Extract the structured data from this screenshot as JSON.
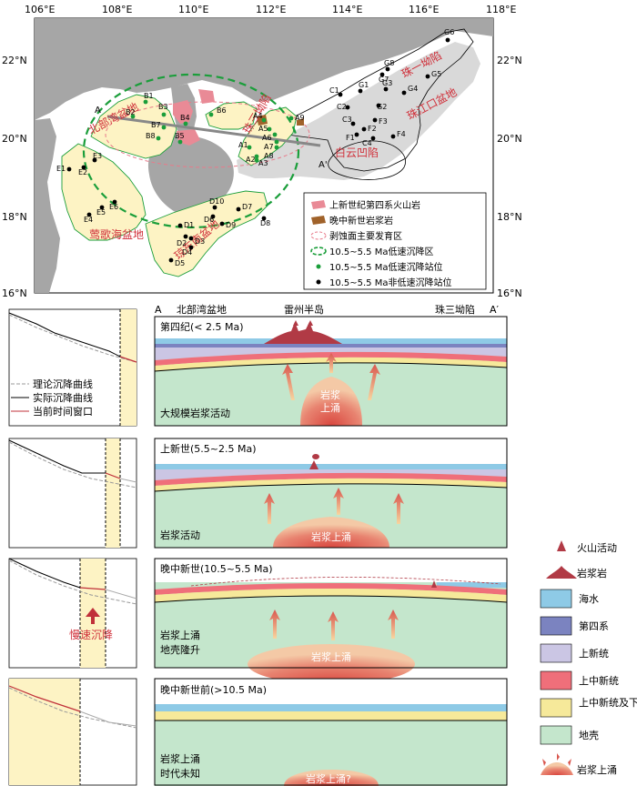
{
  "map": {
    "lon_labels": [
      "106°E",
      "108°E",
      "110°E",
      "112°E",
      "114°E",
      "116°E",
      "118°E"
    ],
    "lat_labels": [
      "22°N",
      "20°N",
      "18°N",
      "16°N"
    ],
    "basins": {
      "beibu": "北部湾盆地",
      "yinggehai": "莺歌海盆地",
      "qiongdongnan": "琼东南盆地",
      "zhusan": "珠三坳陷",
      "zhuyi": "珠一坳陷",
      "pearl_mouth": "珠江口盆地",
      "baiyun": "白云凹陷"
    },
    "profile_start": "A",
    "profile_end": "A'",
    "legend": [
      "上新世纪第四系火山岩",
      "晚中新世岩浆岩",
      "剥蚀面主要发育区",
      "10.5~5.5 Ma低速沉降区",
      "10.5~5.5 Ma低速沉降站位",
      "10.5~5.5 Ma非低速沉降站位"
    ],
    "green_stations": [
      "B1",
      "B2",
      "B3",
      "B4",
      "B5",
      "B6",
      "B7",
      "B8",
      "A1",
      "A2",
      "A3",
      "A4",
      "A5",
      "A6",
      "A7",
      "A8",
      "A9"
    ],
    "black_stations": [
      "C1",
      "C2",
      "C3",
      "C4",
      "F1",
      "F2",
      "F3",
      "F4",
      "G1",
      "G2",
      "G3",
      "G4",
      "G5",
      "G6",
      "G7",
      "G8",
      "E1",
      "E2",
      "E3",
      "E4",
      "E5",
      "E6",
      "D1",
      "D2",
      "D3",
      "D4",
      "D5",
      "D6",
      "D7",
      "D8",
      "D9",
      "D10"
    ]
  },
  "section": {
    "left_label": "A",
    "right_label": "A′",
    "top_labels": [
      "北部湾盆地",
      "雷州半岛",
      "珠三坳陷"
    ],
    "panels": [
      {
        "title": "第四纪(< 2.5 Ma)",
        "desc": [
          "大规模岩浆活动"
        ],
        "magma": [
          "岩浆",
          "上涌"
        ]
      },
      {
        "title": "上新世(5.5~2.5 Ma)",
        "desc": [
          "岩浆活动"
        ],
        "magma": [
          "岩浆上涌"
        ]
      },
      {
        "title": "晚中新世(10.5~5.5 Ma)",
        "desc": [
          "岩浆上涌",
          "地壳隆升"
        ],
        "magma": [
          "岩浆上涌"
        ]
      },
      {
        "title": "晚中新世前(>10.5 Ma)",
        "desc": [
          "岩浆上涌",
          "时代未知"
        ],
        "magma": [
          "岩浆上涌?"
        ]
      }
    ]
  },
  "subsidence": {
    "legend": [
      "理论沉降曲线",
      "实际沉降曲线",
      "当前时间窗口"
    ],
    "slow_label": "慢速沉降"
  },
  "legend_right": [
    "火山活动",
    "岩浆岩",
    "海水",
    "第四系",
    "上新统",
    "上中新统",
    "上中新统及下伏地层",
    "地壳",
    "岩浆上涌"
  ],
  "colors": {
    "land": "#a6a6a6",
    "sea": "#ffffff",
    "basin": "#fdf3c4",
    "pearl_basin": "#dcdcdc",
    "seawater": "#8ecae6",
    "quaternary": "#7b83c0",
    "pliocene": "#cbc6e4",
    "upper_miocene": "#ef6f7a",
    "lower": "#f6e99a",
    "crust": "#c4e6cc",
    "volcanic": "#b13a45",
    "magma": "#e07a6a",
    "green_station": "#1a9e3a",
    "red_text": "#d0303a"
  }
}
